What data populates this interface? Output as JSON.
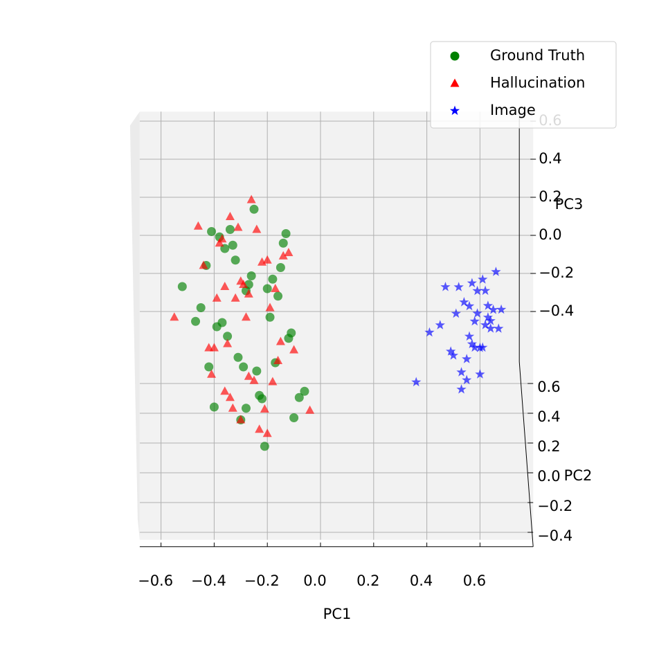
{
  "chart_data": {
    "type": "scatter3d",
    "xlabel": "PC1",
    "ylabel": "PC2",
    "zlabel": "PC3",
    "xlim": [
      -0.68,
      0.8
    ],
    "ylim": [
      -0.45,
      0.7
    ],
    "zlim": [
      -0.7,
      0.65
    ],
    "xticks": [
      {
        "value": -0.6,
        "label": "−0.6"
      },
      {
        "value": -0.4,
        "label": "−0.4"
      },
      {
        "value": -0.2,
        "label": "−0.2"
      },
      {
        "value": 0,
        "label": "0.0"
      },
      0.2,
      0.4,
      0.6
    ],
    "yticks": [
      {
        "value": -0.4,
        "label": "−0.4"
      },
      {
        "value": -0.2,
        "label": "−0.2"
      },
      {
        "value": 0,
        "label": "0.0"
      },
      0.2,
      0.4,
      0.6
    ],
    "zticks": [
      {
        "value": -0.4,
        "label": "−0.4"
      },
      {
        "value": -0.2,
        "label": "−0.2"
      },
      {
        "value": 0,
        "label": "0.0"
      },
      0.2,
      0.4,
      0.6
    ],
    "grid": true,
    "legend": "upper right",
    "series": [
      {
        "name": "Ground Truth",
        "color": "#008000",
        "marker": "circle",
        "x": [
          -0.52,
          -0.42,
          -0.38,
          -0.35,
          -0.33,
          -0.3,
          -0.28,
          -0.25,
          -0.22,
          -0.2,
          -0.17,
          -0.14,
          -0.1,
          -0.45,
          -0.4,
          -0.36,
          -0.31,
          -0.27,
          -0.24,
          -0.19,
          -0.15,
          -0.12,
          -0.08,
          -0.43,
          -0.39,
          -0.34,
          -0.29,
          -0.26,
          -0.21,
          -0.18,
          -0.13,
          -0.06,
          -0.47,
          -0.37,
          -0.32,
          -0.23,
          -0.16,
          -0.11,
          -0.41,
          -0.28
        ],
        "y": [
          0.1,
          0.2,
          0.05,
          0.15,
          0.25,
          0.1,
          0.2,
          0.3,
          0.05,
          0.15,
          0.1,
          0.2,
          0.05,
          0.15,
          0.25,
          0.1,
          0.2,
          0.05,
          0.3,
          0.15,
          0.1,
          0.2,
          0.25,
          0.05,
          0.15,
          0.1,
          0.2,
          0.3,
          0.05,
          0.15,
          0.2,
          0.1,
          0.25,
          0.05,
          0.15,
          0.2,
          0.1,
          0.3,
          0.15,
          0.05
        ],
        "z": [
          0.2,
          -0.3,
          0.5,
          -0.1,
          0.3,
          -0.5,
          0.1,
          0.45,
          -0.35,
          0.15,
          -0.2,
          0.35,
          -0.45,
          0.05,
          -0.55,
          0.4,
          -0.25,
          0.25,
          -0.4,
          0.0,
          0.3,
          -0.15,
          -0.5,
          0.35,
          -0.05,
          0.5,
          -0.3,
          0.1,
          -0.6,
          0.2,
          0.4,
          -0.35,
          -0.1,
          0.05,
          0.3,
          -0.45,
          0.15,
          -0.2,
          0.45,
          -0.4
        ]
      },
      {
        "name": "Hallucination",
        "color": "#ff0000",
        "marker": "triangle",
        "x": [
          -0.55,
          -0.44,
          -0.4,
          -0.37,
          -0.34,
          -0.32,
          -0.29,
          -0.27,
          -0.24,
          -0.21,
          -0.19,
          -0.16,
          -0.12,
          -0.04,
          -0.46,
          -0.41,
          -0.36,
          -0.33,
          -0.3,
          -0.26,
          -0.23,
          -0.2,
          -0.15,
          -0.1,
          -0.38,
          -0.35,
          -0.31,
          -0.28,
          -0.25,
          -0.22,
          -0.18,
          -0.14,
          -0.42,
          -0.39,
          -0.34,
          -0.3,
          -0.27,
          -0.2,
          -0.17,
          -0.36
        ],
        "y": [
          0.15,
          0.05,
          0.2,
          0.1,
          0.25,
          0.15,
          0.05,
          0.2,
          0.1,
          0.3,
          0.15,
          0.05,
          0.2,
          0.1,
          0.25,
          0.15,
          0.1,
          0.05,
          0.2,
          0.3,
          0.1,
          0.15,
          0.05,
          0.25,
          0.2,
          0.1,
          0.05,
          0.15,
          0.3,
          0.2,
          0.1,
          0.05,
          0.2,
          0.15,
          0.25,
          0.1,
          0.05,
          0.2,
          0.15,
          0.1
        ],
        "z": [
          0.0,
          0.35,
          -0.2,
          0.45,
          -0.5,
          0.1,
          0.25,
          -0.35,
          0.5,
          -0.6,
          0.05,
          -0.15,
          0.3,
          -0.45,
          0.4,
          -0.3,
          0.2,
          -0.4,
          0.15,
          0.5,
          -0.55,
          0.3,
          -0.05,
          -0.25,
          0.35,
          -0.1,
          0.55,
          0.0,
          -0.45,
          0.25,
          -0.3,
          0.4,
          -0.2,
          0.1,
          0.45,
          -0.5,
          0.2,
          -0.65,
          0.15,
          -0.35
        ]
      },
      {
        "name": "Image",
        "color": "#0000ff",
        "marker": "star",
        "x": [
          0.36,
          0.41,
          0.45,
          0.47,
          0.49,
          0.51,
          0.52,
          0.53,
          0.54,
          0.55,
          0.56,
          0.57,
          0.58,
          0.59,
          0.6,
          0.61,
          0.62,
          0.63,
          0.64,
          0.65,
          0.66,
          0.67,
          0.5,
          0.53,
          0.56,
          0.58,
          0.6,
          0.62,
          0.64,
          0.55,
          0.57,
          0.59,
          0.61,
          0.63,
          0.68
        ],
        "y": [
          0.2,
          0.15,
          0.25,
          0.2,
          0.15,
          0.2,
          0.25,
          0.1,
          0.2,
          0.15,
          0.25,
          0.2,
          0.1,
          0.15,
          0.2,
          0.25,
          0.2,
          0.15,
          0.1,
          0.2,
          0.25,
          0.15,
          0.2,
          0.1,
          0.2,
          0.25,
          0.15,
          0.2,
          0.1,
          0.15,
          0.2,
          0.25,
          0.1,
          0.2,
          0.15
        ],
        "z": [
          -0.38,
          -0.08,
          -0.12,
          0.12,
          -0.18,
          -0.02,
          0.08,
          -0.25,
          0.04,
          -0.33,
          -0.02,
          0.14,
          -0.12,
          0.02,
          -0.2,
          0.12,
          -0.08,
          0.06,
          -0.02,
          0.0,
          0.16,
          -0.06,
          -0.24,
          -0.34,
          -0.14,
          -0.1,
          -0.3,
          0.1,
          0.02,
          -0.22,
          -0.18,
          0.06,
          -0.12,
          -0.04,
          0.04
        ]
      }
    ]
  }
}
